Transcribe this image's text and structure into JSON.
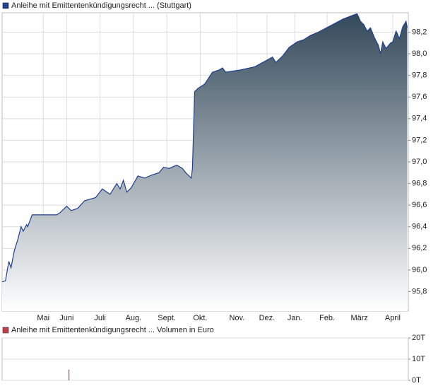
{
  "chart_data": [
    {
      "type": "area",
      "series": [
        {
          "name": "Anleihe mit Emittentenkündigungsrecht ... (Stuttgart)",
          "color": "#1f3f8f",
          "values": [
            95.89,
            95.9,
            96.08,
            96.02,
            96.18,
            96.28,
            96.4,
            96.36,
            96.42,
            96.4,
            96.51,
            96.51,
            96.53,
            96.59,
            96.55,
            96.57,
            96.64,
            96.67,
            96.75,
            96.7,
            96.8,
            96.75,
            96.83,
            96.72,
            96.76,
            96.87,
            96.85,
            96.88,
            96.9,
            96.95,
            96.94,
            96.97,
            96.94,
            96.9,
            96.85,
            96.94,
            97.65,
            97.68,
            97.72,
            97.83,
            97.85,
            97.87,
            97.83,
            97.85,
            97.88,
            97.93,
            97.97,
            97.92,
            97.98,
            98.06,
            98.11,
            98.13,
            98.17,
            98.2,
            98.27,
            98.32,
            98.36,
            98.37,
            98.3,
            98.27,
            98.21,
            98.24,
            98.14,
            98.08,
            98.0,
            98.11,
            98.05,
            98.1,
            98.11,
            98.21,
            98.14,
            98.25,
            98.3,
            98.24
          ]
        }
      ],
      "x": [
        0,
        3,
        6,
        8,
        11,
        14,
        17,
        19,
        22,
        23,
        27,
        49,
        52,
        58,
        62,
        68,
        74,
        84,
        90,
        97,
        103,
        106,
        109,
        112,
        116,
        122,
        128,
        135,
        141,
        145,
        150,
        157,
        162,
        165,
        170,
        171,
        173,
        176,
        182,
        189,
        195,
        198,
        201,
        214,
        227,
        236,
        243,
        246,
        252,
        258,
        265,
        271,
        277,
        284,
        297,
        306,
        316,
        319,
        322,
        325,
        328,
        331,
        335,
        338,
        340,
        342,
        345,
        349,
        351,
        354,
        357,
        360,
        363,
        364
      ],
      "xlim": [
        0,
        365
      ],
      "xticks": [
        {
          "value": 37,
          "label": "Mai"
        },
        {
          "value": 58,
          "label": "Juni"
        },
        {
          "value": 88,
          "label": "Juli"
        },
        {
          "value": 118,
          "label": "Aug."
        },
        {
          "value": 148,
          "label": "Sept."
        },
        {
          "value": 178,
          "label": "Okt."
        },
        {
          "value": 211,
          "label": "Nov."
        },
        {
          "value": 238,
          "label": "Dez."
        },
        {
          "value": 263,
          "label": "Jan."
        },
        {
          "value": 292,
          "label": "Feb."
        },
        {
          "value": 321,
          "label": "März"
        },
        {
          "value": 351,
          "label": "April"
        }
      ],
      "ylim": [
        95.62,
        98.38
      ],
      "yticks": [
        {
          "value": 95.8,
          "label": "95,8"
        },
        {
          "value": 96.0,
          "label": "96,0"
        },
        {
          "value": 96.2,
          "label": "96,2"
        },
        {
          "value": 96.4,
          "label": "96,4"
        },
        {
          "value": 96.6,
          "label": "96,6"
        },
        {
          "value": 96.8,
          "label": "96,8"
        },
        {
          "value": 97.0,
          "label": "97,0"
        },
        {
          "value": 97.2,
          "label": "97,2"
        },
        {
          "value": 97.4,
          "label": "97,4"
        },
        {
          "value": 97.6,
          "label": "97,6"
        },
        {
          "value": 97.8,
          "label": "97,8"
        },
        {
          "value": 98.0,
          "label": "98,0"
        },
        {
          "value": 98.2,
          "label": "98,2"
        }
      ],
      "grid": true
    },
    {
      "type": "bar",
      "series": [
        {
          "name": "Anleihe mit Emittentenkündigungsrecht ... Volumen in Euro",
          "color": "#c0404a",
          "values": [
            5000
          ]
        }
      ],
      "x": [
        60
      ],
      "xlim": [
        0,
        365
      ],
      "ylim": [
        0,
        20000
      ],
      "yticks": [
        {
          "value": 0,
          "label": "0T"
        },
        {
          "value": 10000,
          "label": "10T"
        },
        {
          "value": 20000,
          "label": "20T"
        }
      ],
      "grid": true
    }
  ]
}
